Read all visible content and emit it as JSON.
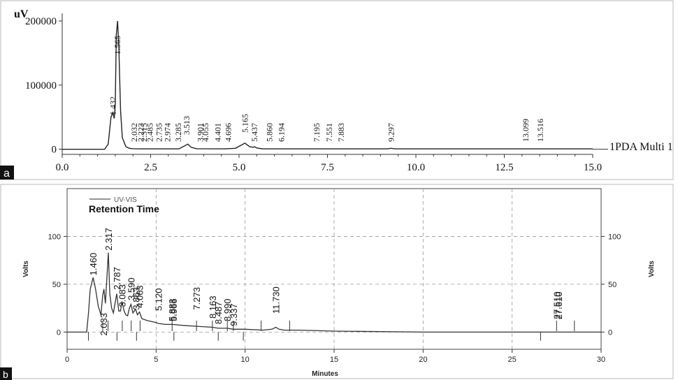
{
  "panel_labels": [
    "a",
    "b"
  ],
  "chart_data": [
    {
      "type": "line",
      "panel": "a",
      "ylabel": "uV",
      "xlim": [
        0,
        15
      ],
      "ylim": [
        -8000,
        212000
      ],
      "xticks": [
        "0.0",
        "2.5",
        "5.0",
        "7.5",
        "10.0",
        "12.5",
        "15.0"
      ],
      "xtick_values": [
        0,
        2.5,
        5,
        7.5,
        10,
        12.5,
        15
      ],
      "yticks": [
        "0",
        "100000",
        "200000"
      ],
      "ytick_values": [
        0,
        100000,
        200000
      ],
      "series": [
        {
          "name": "1PDA Multi 1",
          "x": [
            0,
            1.2,
            1.3,
            1.38,
            1.43,
            1.47,
            1.5,
            1.53,
            1.565,
            1.6,
            1.65,
            1.7,
            1.8,
            1.9,
            2.0,
            2.2,
            2.6,
            3.3,
            3.45,
            3.55,
            3.65,
            3.8,
            4.6,
            4.9,
            5.05,
            5.165,
            5.3,
            5.4,
            5.44,
            5.5,
            5.65,
            5.9,
            7.0,
            9.2,
            9.3,
            9.4,
            12.5,
            15.0
          ],
          "y": [
            0,
            0,
            8000,
            50000,
            57000,
            48000,
            70000,
            178000,
            200000,
            160000,
            60000,
            18000,
            4000,
            1500,
            800,
            600,
            600,
            600,
            5000,
            8000,
            3000,
            800,
            600,
            1500,
            6000,
            9500,
            4000,
            3000,
            4000,
            2000,
            700,
            600,
            600,
            600,
            1500,
            600,
            600,
            600
          ]
        }
      ],
      "peak_labels": [
        {
          "x": 1.565,
          "label": "1.565"
        },
        {
          "x": 1.432,
          "label": "1.432"
        },
        {
          "x": 2.032,
          "label": "2.032"
        },
        {
          "x": 2.223,
          "label": "2.223"
        },
        {
          "x": 2.315,
          "label": "2.315"
        },
        {
          "x": 2.485,
          "label": "2.485"
        },
        {
          "x": 2.735,
          "label": "2.735"
        },
        {
          "x": 2.974,
          "label": "2.974"
        },
        {
          "x": 3.285,
          "label": "3.285"
        },
        {
          "x": 3.513,
          "label": "3.513"
        },
        {
          "x": 3.901,
          "label": "3.901"
        },
        {
          "x": 4.055,
          "label": "4.055"
        },
        {
          "x": 4.401,
          "label": "4.401"
        },
        {
          "x": 4.696,
          "label": "4.696"
        },
        {
          "x": 5.165,
          "label": "5.165"
        },
        {
          "x": 5.437,
          "label": "5.437"
        },
        {
          "x": 5.86,
          "label": "5.860"
        },
        {
          "x": 6.194,
          "label": "6.194"
        },
        {
          "x": 7.195,
          "label": "7.195"
        },
        {
          "x": 7.551,
          "label": "7.551"
        },
        {
          "x": 7.883,
          "label": "7.883"
        },
        {
          "x": 9.297,
          "label": "9.297"
        },
        {
          "x": 13.099,
          "label": "13.099"
        },
        {
          "x": 13.516,
          "label": "13.516"
        }
      ]
    },
    {
      "type": "line",
      "panel": "b",
      "title": "Retention Time",
      "xlabel": "Minutes",
      "ylabel": "Volts",
      "ylabel_right": "Volts",
      "grid": true,
      "legend": "top-left",
      "xlim": [
        0,
        30
      ],
      "ylim": [
        -18,
        150
      ],
      "xticks": [
        "0",
        "5",
        "10",
        "15",
        "20",
        "25",
        "30"
      ],
      "xtick_values": [
        0,
        5,
        10,
        15,
        20,
        25,
        30
      ],
      "yticks": [
        "0",
        "50",
        "100"
      ],
      "ytick_values": [
        0,
        50,
        100
      ],
      "series": [
        {
          "name": "UV-VIS",
          "x": [
            0,
            1.1,
            1.2,
            1.3,
            1.46,
            1.6,
            1.75,
            1.9,
            2.0,
            2.07,
            2.15,
            2.317,
            2.4,
            2.5,
            2.6,
            2.787,
            2.9,
            3.0,
            3.083,
            3.2,
            3.3,
            3.4,
            3.5,
            3.59,
            3.7,
            3.85,
            3.95,
            4.063,
            4.2,
            4.5,
            5.0,
            5.12,
            5.5,
            5.9,
            6.5,
            7.273,
            8.163,
            8.487,
            9.0,
            9.337,
            10.0,
            11.0,
            11.5,
            11.73,
            11.9,
            12.2,
            13.0,
            15.0,
            20.0,
            25.0,
            27.6,
            28.0,
            30.0
          ],
          "y": [
            0,
            0,
            20,
            45,
            57,
            45,
            27,
            18,
            38,
            45,
            30,
            83,
            40,
            25,
            20,
            40,
            22,
            22,
            32,
            22,
            18,
            17,
            25,
            29,
            20,
            24,
            18,
            21,
            14,
            12,
            10,
            9,
            8,
            8,
            7,
            6,
            5,
            4,
            4,
            3,
            3,
            2,
            3,
            5,
            3,
            2,
            2,
            1,
            0,
            0,
            0,
            0,
            0
          ]
        }
      ],
      "peak_labels": [
        {
          "x": 1.46,
          "y": 57,
          "label": "1.460"
        },
        {
          "x": 2.033,
          "y": -6,
          "label": "2.033"
        },
        {
          "x": 2.317,
          "y": 83,
          "label": "2.317"
        },
        {
          "x": 2.787,
          "y": 42,
          "label": "2.787"
        },
        {
          "x": 3.083,
          "y": 24,
          "label": "3.083"
        },
        {
          "x": 3.59,
          "y": 31,
          "label": "3.590"
        },
        {
          "x": 3.863,
          "y": 21,
          "label": "3.863"
        },
        {
          "x": 4.063,
          "y": 23,
          "label": "4.063"
        },
        {
          "x": 5.12,
          "y": 20,
          "label": "5.120"
        },
        {
          "x": 5.883,
          "y": 9,
          "label": "5.883"
        },
        {
          "x": 5.966,
          "y": 9,
          "label": "5.966"
        },
        {
          "x": 7.273,
          "y": 21,
          "label": "7.273"
        },
        {
          "x": 8.163,
          "y": 12,
          "label": "8.163"
        },
        {
          "x": 8.487,
          "y": 6,
          "label": "8.487"
        },
        {
          "x": 8.99,
          "y": 9,
          "label": "8.990"
        },
        {
          "x": 9.337,
          "y": 4,
          "label": "9.337"
        },
        {
          "x": 11.73,
          "y": 17,
          "label": "11.730"
        },
        {
          "x": 27.51,
          "y": 11,
          "label": "27.510"
        },
        {
          "x": 27.61,
          "y": 11,
          "label": "27.610"
        }
      ]
    }
  ]
}
